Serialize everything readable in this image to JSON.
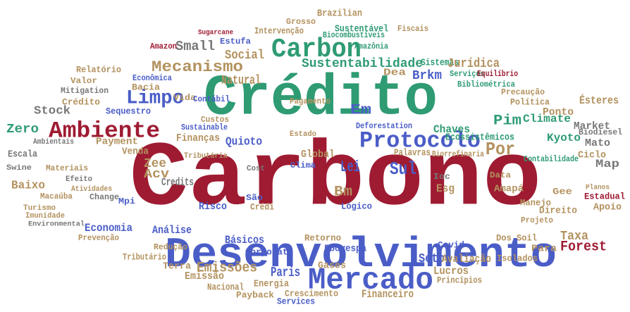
{
  "word_cloud": {
    "words": [
      {
        "text": "Carbono",
        "color": "#9e1b32"
      },
      {
        "text": "Crédito",
        "color": "#2e9b73"
      },
      {
        "text": "Desenvolvimento",
        "color": "#4a5dc7"
      },
      {
        "text": "Mercado",
        "color": "#4a5dc7"
      },
      {
        "text": "Carbon",
        "color": "#2e9b73"
      },
      {
        "text": "Protocolo",
        "color": "#4a5dc7"
      },
      {
        "text": "Ambiente",
        "color": "#9e1b32"
      },
      {
        "text": "Limpo",
        "color": "#4a5dc7"
      },
      {
        "text": "Mecanismo",
        "color": "#b3925f"
      },
      {
        "text": "Sustentabilidade",
        "color": "#2e9b73"
      },
      {
        "text": "Stock",
        "color": "#777777"
      },
      {
        "text": "Zero",
        "color": "#2e9b73"
      },
      {
        "text": "Social",
        "color": "#b3925f"
      },
      {
        "text": "Small",
        "color": "#777777"
      },
      {
        "text": "Amazon",
        "color": "#9e1b32"
      },
      {
        "text": "Sul",
        "color": "#4a5dc7"
      },
      {
        "text": "Lei",
        "color": "#4a5dc7"
      },
      {
        "text": "Bm",
        "color": "#b3925f"
      },
      {
        "text": "Quioto",
        "color": "#4a5dc7"
      },
      {
        "text": "Finanças",
        "color": "#b3925f"
      },
      {
        "text": "Paris",
        "color": "#4a5dc7"
      },
      {
        "text": "Emissões",
        "color": "#b3925f"
      },
      {
        "text": "Setor",
        "color": "#4a5dc7"
      },
      {
        "text": "Lucros",
        "color": "#b3925f"
      },
      {
        "text": "Forest",
        "color": "#9e1b32"
      },
      {
        "text": "Taxa",
        "color": "#b3925f"
      },
      {
        "text": "Pim",
        "color": "#2e9b73"
      },
      {
        "text": "Climate",
        "color": "#2e9b73"
      },
      {
        "text": "Market",
        "color": "#777777"
      },
      {
        "text": "Kyoto",
        "color": "#2e9b73"
      },
      {
        "text": "Mato",
        "color": "#777777"
      },
      {
        "text": "Por",
        "color": "#b3925f"
      },
      {
        "text": "Chaves",
        "color": "#2e9b73"
      },
      {
        "text": "Esg",
        "color": "#b3925f"
      },
      {
        "text": "Ioc",
        "color": "#777777"
      },
      {
        "text": "Global",
        "color": "#b3925f"
      },
      {
        "text": "Palavras",
        "color": "#b3925f"
      },
      {
        "text": "Venda",
        "color": "#b3925f"
      },
      {
        "text": "Acv",
        "color": "#b3925f"
      },
      {
        "text": "Zee",
        "color": "#b3925f"
      },
      {
        "text": "Credits",
        "color": "#777777"
      },
      {
        "text": "Escala",
        "color": "#777777"
      },
      {
        "text": "Payment",
        "color": "#b3925f"
      },
      {
        "text": "Ambientais",
        "color": "#777777"
      },
      {
        "text": "Materiais",
        "color": "#b3925f"
      },
      {
        "text": "Baixo",
        "color": "#b3925f"
      },
      {
        "text": "Efeito",
        "color": "#777777"
      },
      {
        "text": "Atividades",
        "color": "#b3925f"
      },
      {
        "text": "Macaúba",
        "color": "#b3925f"
      },
      {
        "text": "Change",
        "color": "#777777"
      },
      {
        "text": "Mpi",
        "color": "#4a5dc7"
      },
      {
        "text": "Economia",
        "color": "#4a5dc7"
      },
      {
        "text": "Análise",
        "color": "#4a5dc7"
      },
      {
        "text": "Prevenção",
        "color": "#b3925f"
      },
      {
        "text": "Redução",
        "color": "#b3925f"
      },
      {
        "text": "Tributário",
        "color": "#b3925f"
      },
      {
        "text": "Terra",
        "color": "#b3925f"
      },
      {
        "text": "Emissão",
        "color": "#b3925f"
      },
      {
        "text": "Nacional",
        "color": "#b3925f"
      },
      {
        "text": "Energia",
        "color": "#b3925f"
      },
      {
        "text": "Services",
        "color": "#4a5dc7"
      },
      {
        "text": "Financeiro",
        "color": "#b3925f"
      },
      {
        "text": "Princípios",
        "color": "#b3925f"
      },
      {
        "text": "Avaliação",
        "color": "#b3925f"
      },
      {
        "text": "Isolados",
        "color": "#b3925f"
      },
      {
        "text": "Dos Soil",
        "color": "#b3925f"
      },
      {
        "text": "Para",
        "color": "#b3925f"
      },
      {
        "text": "Projeto",
        "color": "#b3925f"
      },
      {
        "text": "Direito",
        "color": "#b3925f"
      },
      {
        "text": "Manejo",
        "color": "#b3925f"
      },
      {
        "text": "Apoio",
        "color": "#b3925f"
      },
      {
        "text": "Estadual",
        "color": "#9e1b32"
      },
      {
        "text": "Map",
        "color": "#777777"
      },
      {
        "text": "Ciclo",
        "color": "#b3925f"
      },
      {
        "text": "Biodiesel",
        "color": "#777777"
      },
      {
        "text": "Ponto",
        "color": "#b3925f"
      },
      {
        "text": "Ésteres",
        "color": "#b3925f"
      },
      {
        "text": "Política",
        "color": "#b3925f"
      },
      {
        "text": "Precaução",
        "color": "#b3925f"
      },
      {
        "text": "Básicos",
        "color": "#4a5dc7"
      },
      {
        "text": "Retorno",
        "color": "#b3925f"
      },
      {
        "text": "Fbovespa",
        "color": "#4a5dc7"
      },
      {
        "text": "Risco",
        "color": "#4a5dc7"
      },
      {
        "text": "Crédi",
        "color": "#b3925f"
      },
      {
        "text": "São",
        "color": "#4a5dc7"
      },
      {
        "text": "Relatório",
        "color": "#b3925f"
      },
      {
        "text": "Valor",
        "color": "#b3925f"
      },
      {
        "text": "Mitigation",
        "color": "#777777"
      },
      {
        "text": "Crédito",
        "color": "#b3925f"
      },
      {
        "text": "Bacia",
        "color": "#b3925f"
      },
      {
        "text": "Vida",
        "color": "#b3925f"
      },
      {
        "text": "Contábil",
        "color": "#4a5dc7"
      },
      {
        "text": "Natural",
        "color": "#b3925f"
      },
      {
        "text": "Em",
        "color": "#4a5dc7"
      },
      {
        "text": "Brkm",
        "color": "#4a5dc7"
      },
      {
        "text": "Dea",
        "color": "#b3925f"
      },
      {
        "text": "Pagamento",
        "color": "#b3925f"
      },
      {
        "text": "Sistemas",
        "color": "#2e9b73"
      },
      {
        "text": "Jurídica",
        "color": "#b3925f"
      },
      {
        "text": "Serviços",
        "color": "#2e9b73"
      },
      {
        "text": "Equilíbrio",
        "color": "#9e1b32"
      },
      {
        "text": "Estufa",
        "color": "#4a5dc7"
      },
      {
        "text": "Intervenção",
        "color": "#b3925f"
      },
      {
        "text": "Sustentável",
        "color": "#2e9b73"
      },
      {
        "text": "Grosso",
        "color": "#b3925f"
      },
      {
        "text": "Brazilian",
        "color": "#b3925f"
      },
      {
        "text": "Biocombustíveis",
        "color": "#2e9b73"
      },
      {
        "text": "Amazônia",
        "color": "#2e9b73"
      },
      {
        "text": "Fiscais",
        "color": "#b3925f"
      },
      {
        "text": "Bibliométrica",
        "color": "#2e9b73"
      },
      {
        "text": "Sugarcane",
        "color": "#9e1b32"
      },
      {
        "text": "Sequestro",
        "color": "#4a5dc7"
      },
      {
        "text": "Swine",
        "color": "#777777"
      },
      {
        "text": "Deforestation",
        "color": "#4a5dc7"
      },
      {
        "text": "Estado",
        "color": "#b3925f"
      },
      {
        "text": "Tributária",
        "color": "#b3925f"
      },
      {
        "text": "Clima",
        "color": "#4a5dc7"
      },
      {
        "text": "Cost",
        "color": "#777777"
      },
      {
        "text": "Ecossistêmicos",
        "color": "#2e9b73"
      },
      {
        "text": "Contabilidade",
        "color": "#2e9b73"
      },
      {
        "text": "Biorrefinaria",
        "color": "#b3925f"
      },
      {
        "text": "Gases",
        "color": "#b3925f"
      },
      {
        "text": "Covid",
        "color": "#4a5dc7"
      },
      {
        "text": "Amapá",
        "color": "#b3925f"
      },
      {
        "text": "Data",
        "color": "#b3925f"
      },
      {
        "text": "Sustainable",
        "color": "#4a5dc7"
      },
      {
        "text": "Custos",
        "color": "#b3925f"
      },
      {
        "text": "Crescimento",
        "color": "#b3925f"
      },
      {
        "text": "Payback",
        "color": "#b3925f"
      },
      {
        "text": "Lógico",
        "color": "#4a5dc7"
      },
      {
        "text": "Corporate",
        "color": "#4a5dc7"
      },
      {
        "text": "Econômica",
        "color": "#4a5dc7"
      },
      {
        "text": "Turismo",
        "color": "#b3925f"
      },
      {
        "text": "Imunidade",
        "color": "#b3925f"
      },
      {
        "text": "Environmental",
        "color": "#777777"
      },
      {
        "text": "Gee",
        "color": "#b3925f"
      },
      {
        "text": "Planos",
        "color": "#b3925f"
      }
    ]
  }
}
